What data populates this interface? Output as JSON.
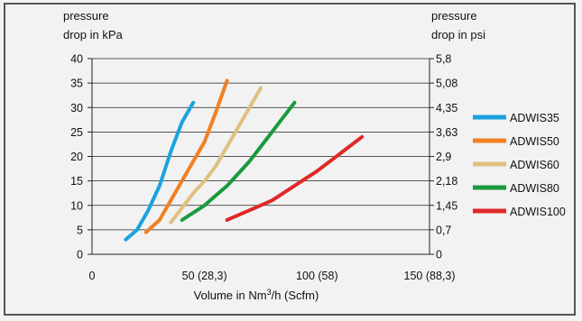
{
  "chart_data": {
    "type": "line",
    "ylabel_left": [
      "pressure",
      "drop in kPa"
    ],
    "ylabel_right": [
      "pressure",
      "drop in psi"
    ],
    "xlabel": "Volume in Nm³/h (Scfm)",
    "xlim": [
      0,
      150
    ],
    "ylim": [
      0,
      40
    ],
    "x_ticks": [
      {
        "value": 0,
        "label": "0"
      },
      {
        "value": 50,
        "label": "50 (28,3)"
      },
      {
        "value": 100,
        "label": "100 (58)"
      },
      {
        "value": 150,
        "label": "150 (88,3)"
      }
    ],
    "y_ticks_left": [
      {
        "value": 0,
        "label": "0"
      },
      {
        "value": 5,
        "label": "5"
      },
      {
        "value": 10,
        "label": "10"
      },
      {
        "value": 15,
        "label": "15"
      },
      {
        "value": 20,
        "label": "20"
      },
      {
        "value": 25,
        "label": "25"
      },
      {
        "value": 30,
        "label": "30"
      },
      {
        "value": 35,
        "label": "35"
      },
      {
        "value": 40,
        "label": "40"
      }
    ],
    "y_ticks_right": [
      {
        "value": 0,
        "label": "0"
      },
      {
        "value": 5,
        "label": "0,7"
      },
      {
        "value": 10,
        "label": "1,45"
      },
      {
        "value": 15,
        "label": "2,18"
      },
      {
        "value": 20,
        "label": "2,9"
      },
      {
        "value": 25,
        "label": "3,63"
      },
      {
        "value": 30,
        "label": "4,35"
      },
      {
        "value": 35,
        "label": "5,08"
      },
      {
        "value": 40,
        "label": "5,8"
      }
    ],
    "grid": "horizontal",
    "legend_position": "right",
    "series": [
      {
        "name": "ADWIS35",
        "color": "#1aa3e0",
        "points": [
          [
            15,
            3
          ],
          [
            20,
            5
          ],
          [
            25,
            9
          ],
          [
            30,
            14
          ],
          [
            35,
            21
          ],
          [
            40,
            27
          ],
          [
            45,
            31
          ]
        ]
      },
      {
        "name": "ADWIS50",
        "color": "#f28023",
        "points": [
          [
            24,
            4.5
          ],
          [
            30,
            7
          ],
          [
            35,
            11
          ],
          [
            40,
            15
          ],
          [
            45,
            19
          ],
          [
            50,
            23
          ],
          [
            55,
            29
          ],
          [
            60,
            35.5
          ]
        ]
      },
      {
        "name": "ADWIS60",
        "color": "#e0c080",
        "points": [
          [
            35,
            6.5
          ],
          [
            40,
            9.5
          ],
          [
            45,
            12.5
          ],
          [
            50,
            15
          ],
          [
            55,
            18
          ],
          [
            60,
            22
          ],
          [
            65,
            26
          ],
          [
            70,
            30
          ],
          [
            75,
            34
          ]
        ]
      },
      {
        "name": "ADWIS80",
        "color": "#1a9a3e",
        "points": [
          [
            40,
            7
          ],
          [
            45,
            8.5
          ],
          [
            50,
            10
          ],
          [
            55,
            12
          ],
          [
            60,
            14
          ],
          [
            65,
            16.5
          ],
          [
            70,
            19
          ],
          [
            75,
            22
          ],
          [
            80,
            25
          ],
          [
            85,
            28
          ],
          [
            90,
            31
          ]
        ]
      },
      {
        "name": "ADWIS100",
        "color": "#e02828",
        "points": [
          [
            60,
            7
          ],
          [
            70,
            9
          ],
          [
            80,
            11
          ],
          [
            90,
            14
          ],
          [
            100,
            17
          ],
          [
            110,
            20.5
          ],
          [
            120,
            24
          ]
        ]
      }
    ]
  }
}
